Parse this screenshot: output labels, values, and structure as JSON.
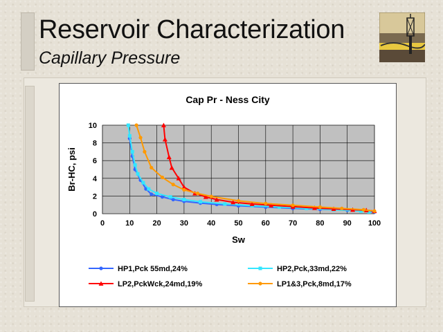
{
  "slide": {
    "title": "Reservoir Characterization",
    "subtitle": "Capillary Pressure"
  },
  "chart_data": {
    "type": "line",
    "title": "Cap Pr - Ness City",
    "xlabel": "Sw",
    "ylabel": "Br-HC, psi",
    "xlim": [
      0,
      100
    ],
    "ylim": [
      0,
      10
    ],
    "xticks": [
      "0",
      "10",
      "20",
      "30",
      "40",
      "50",
      "60",
      "70",
      "80",
      "90",
      "100"
    ],
    "yticks": [
      "0",
      "2",
      "4",
      "6",
      "8",
      "10"
    ],
    "grid": true,
    "plot_background": "#c0c0c0",
    "legend_position": "bottom",
    "series": [
      {
        "name": "HP1,Pck 55md,24%",
        "color": "#3366ff",
        "marker": "circle",
        "points": [
          [
            10,
            8.5
          ],
          [
            11,
            6.5
          ],
          [
            12,
            5
          ],
          [
            14,
            3.8
          ],
          [
            16,
            2.8
          ],
          [
            18,
            2.2
          ],
          [
            22,
            1.9
          ],
          [
            26,
            1.6
          ],
          [
            30,
            1.4
          ],
          [
            36,
            1.2
          ],
          [
            42,
            1.05
          ],
          [
            50,
            0.9
          ],
          [
            60,
            0.75
          ],
          [
            70,
            0.6
          ],
          [
            80,
            0.5
          ],
          [
            90,
            0.4
          ],
          [
            100,
            0.2
          ]
        ]
      },
      {
        "name": "HP2,Pck,33md,22%",
        "color": "#33e6ff",
        "marker": "square",
        "points": [
          [
            9.5,
            10
          ],
          [
            10,
            8.8
          ],
          [
            11,
            7
          ],
          [
            12,
            5.5
          ],
          [
            13,
            4.5
          ],
          [
            15,
            3.5
          ],
          [
            17,
            2.8
          ],
          [
            20,
            2.3
          ],
          [
            25,
            1.9
          ],
          [
            30,
            1.6
          ],
          [
            36,
            1.35
          ],
          [
            45,
            1.1
          ],
          [
            55,
            0.9
          ],
          [
            65,
            0.75
          ],
          [
            75,
            0.6
          ],
          [
            85,
            0.45
          ],
          [
            95,
            0.3
          ],
          [
            98,
            0.2
          ]
        ]
      },
      {
        "name": "LP2,PckWck,24md,19%",
        "color": "#ff0000",
        "marker": "triangle",
        "points": [
          [
            22.5,
            10
          ],
          [
            23,
            8.4
          ],
          [
            24.5,
            6.4
          ],
          [
            25.5,
            5.2
          ],
          [
            28,
            4
          ],
          [
            30,
            3
          ],
          [
            34,
            2.3
          ],
          [
            38,
            1.9
          ],
          [
            42,
            1.6
          ],
          [
            48,
            1.3
          ],
          [
            55,
            1.1
          ],
          [
            62,
            0.95
          ],
          [
            70,
            0.8
          ],
          [
            78,
            0.65
          ],
          [
            85,
            0.55
          ],
          [
            92,
            0.45
          ],
          [
            97,
            0.4
          ],
          [
            100,
            0.3
          ]
        ]
      },
      {
        "name": "LP1&3,Pck,8md,17%",
        "color": "#ff9900",
        "marker": "circle",
        "points": [
          [
            12.5,
            10
          ],
          [
            14,
            8.6
          ],
          [
            15.5,
            7
          ],
          [
            18,
            5.2
          ],
          [
            22,
            4.1
          ],
          [
            26,
            3.3
          ],
          [
            30,
            2.7
          ],
          [
            35,
            2.3
          ],
          [
            40,
            1.95
          ],
          [
            50,
            1.45
          ],
          [
            60,
            1.15
          ],
          [
            70,
            0.95
          ],
          [
            80,
            0.75
          ],
          [
            88,
            0.6
          ],
          [
            96,
            0.45
          ],
          [
            100,
            0.3
          ]
        ]
      }
    ]
  }
}
